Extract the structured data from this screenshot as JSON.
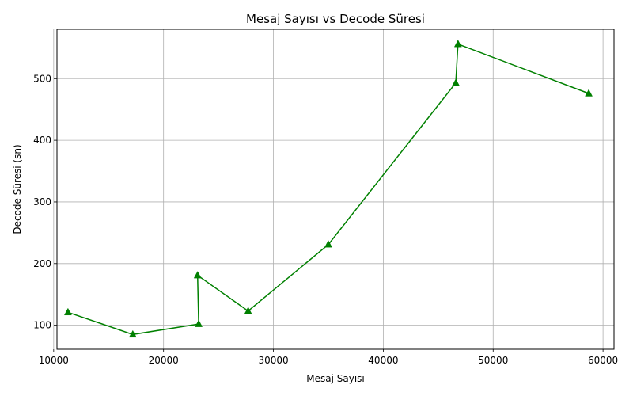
{
  "chart_data": {
    "type": "line",
    "title": "Mesaj Sayısı vs Decode Süresi",
    "xlabel": "Mesaj Sayısı",
    "ylabel": "Decode Süresi (sn)",
    "xlim": [
      10300,
      61000
    ],
    "ylim": [
      61,
      580
    ],
    "xticks": [
      10000,
      20000,
      30000,
      40000,
      50000,
      60000
    ],
    "yticks": [
      100,
      200,
      300,
      400,
      500
    ],
    "grid": true,
    "series": [
      {
        "color": "#008000",
        "marker": "triangle-up",
        "x": [
          11300,
          17200,
          23200,
          23100,
          27700,
          35000,
          46600,
          46800,
          58700
        ],
        "y": [
          121,
          85,
          102,
          181,
          123,
          231,
          493,
          556,
          476
        ]
      }
    ]
  }
}
